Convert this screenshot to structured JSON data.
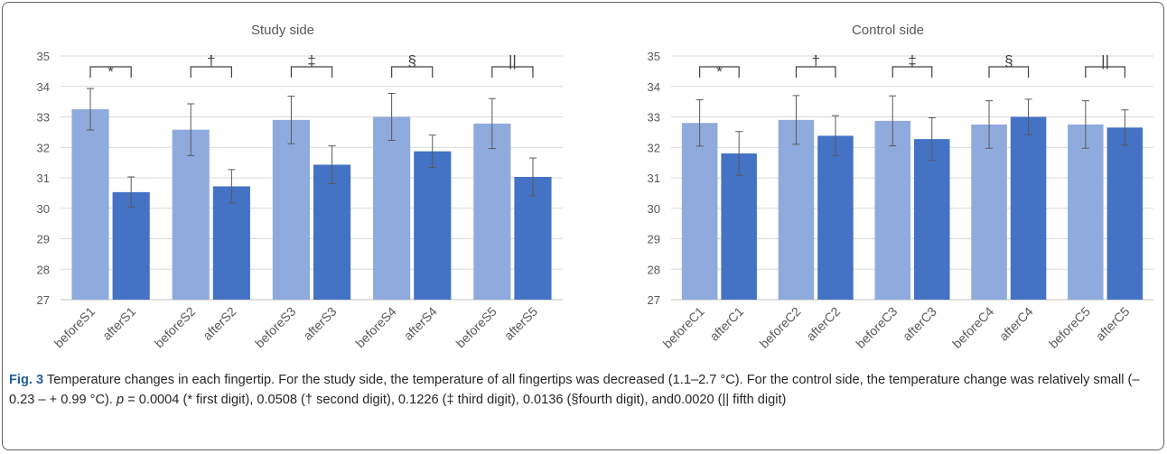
{
  "figure": {
    "label": "Fig. 3",
    "caption_text": " Temperature changes in each fingertip. For the study side, the temperature of all fingertips was decreased (1.1–2.7 °C). For the control side, the temperature change was relatively small (– 0.23 – + 0.99 °C). ",
    "p_symbol": "p",
    "caption_tail": " = 0.0004 (* first digit), 0.0508 († second digit), 0.1226 (‡ third digit), 0.0136 (§fourth digit), and0.0020 (|| fifth digit)"
  },
  "colors": {
    "before": "#8faadc",
    "after": "#4472c4",
    "errorbar": "#595959",
    "grid": "#d9d9d9",
    "axis": "#bfbfbf",
    "text": "#595959"
  },
  "chart_data": [
    {
      "type": "bar",
      "title": "Study side",
      "ylim": [
        27,
        35
      ],
      "yticks": [
        27,
        28,
        29,
        30,
        31,
        32,
        33,
        34,
        35
      ],
      "grid": true,
      "categories": [
        "beforeS1",
        "afterS1",
        "beforeS2",
        "afterS2",
        "beforeS3",
        "afterS3",
        "beforeS4",
        "afterS4",
        "beforeS5",
        "afterS5"
      ],
      "values": [
        33.25,
        30.53,
        32.58,
        30.72,
        32.9,
        31.43,
        33.0,
        31.87,
        32.78,
        31.03
      ],
      "errors": [
        0.68,
        0.5,
        0.85,
        0.55,
        0.78,
        0.62,
        0.77,
        0.53,
        0.82,
        0.62
      ],
      "significance": [
        "*",
        "†",
        "‡",
        "§",
        "||"
      ]
    },
    {
      "type": "bar",
      "title": "Control side",
      "ylim": [
        27,
        35
      ],
      "yticks": [
        27,
        28,
        29,
        30,
        31,
        32,
        33,
        34,
        35
      ],
      "grid": true,
      "categories": [
        "beforeC1",
        "afterC1",
        "beforeC2",
        "afterC2",
        "beforeC3",
        "afterC3",
        "beforeC4",
        "afterC4",
        "beforeC5",
        "afterC5"
      ],
      "values": [
        32.8,
        31.8,
        32.9,
        32.38,
        32.87,
        32.27,
        32.75,
        33.0,
        32.75,
        32.65
      ],
      "errors": [
        0.76,
        0.72,
        0.8,
        0.66,
        0.82,
        0.7,
        0.78,
        0.58,
        0.78,
        0.58
      ],
      "significance": [
        "*",
        "†",
        "‡",
        "§",
        "||"
      ]
    }
  ]
}
